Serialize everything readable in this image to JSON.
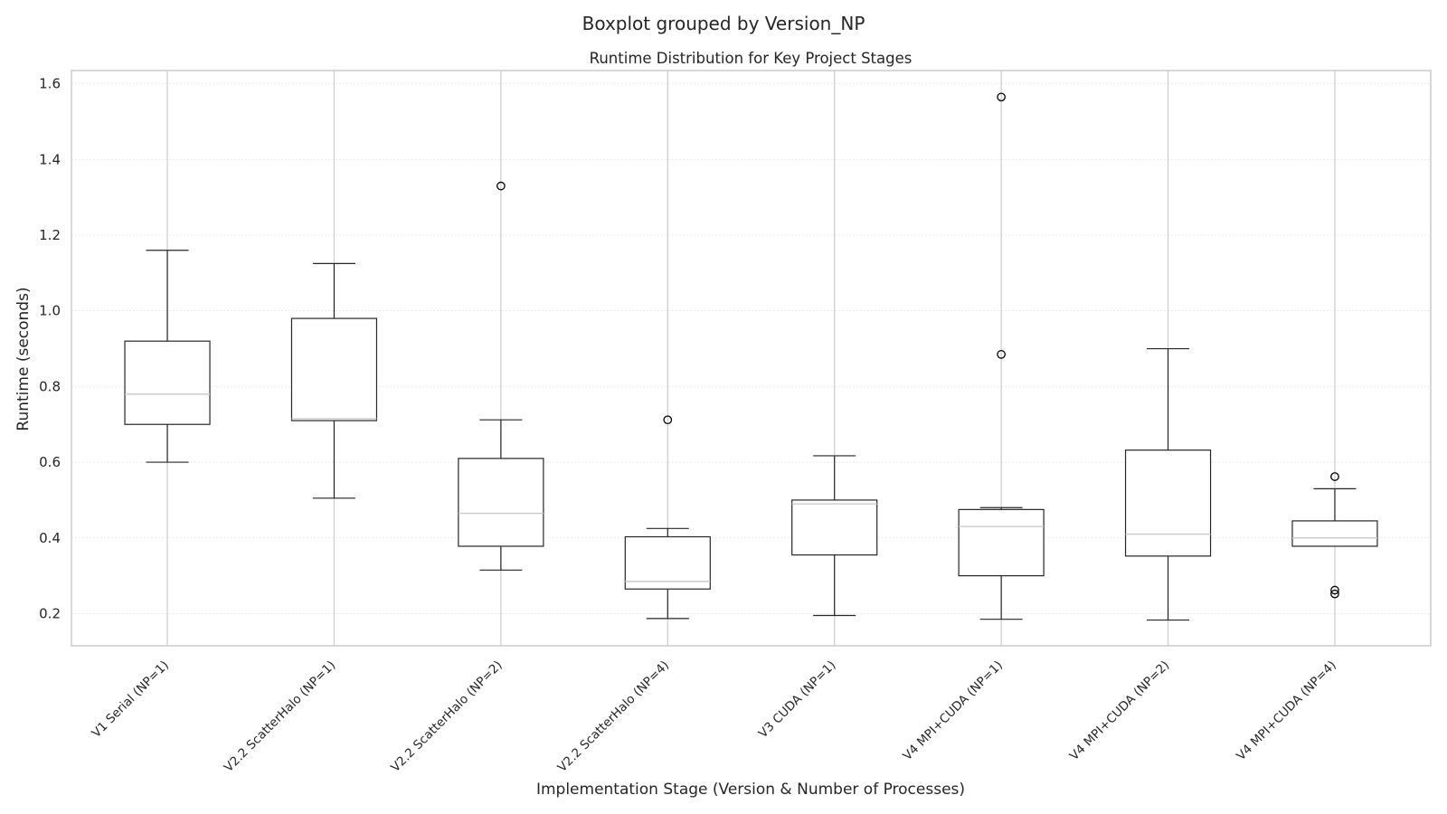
{
  "chart_data": {
    "type": "boxplot",
    "suptitle": "Boxplot grouped by Version_NP",
    "title": "Runtime Distribution for Key Project Stages",
    "xlabel": "Implementation Stage (Version & Number of Processes)",
    "ylabel": "Runtime (seconds)",
    "ylim": [
      0.115,
      1.635
    ],
    "yticks": [
      0.2,
      0.4,
      0.6,
      0.8,
      1.0,
      1.2,
      1.4,
      1.6
    ],
    "ytick_labels": [
      "0.2",
      "0.4",
      "0.6",
      "0.8",
      "1.0",
      "1.2",
      "1.4",
      "1.6"
    ],
    "grid": true,
    "categories": [
      "V1 Serial (NP=1)",
      "V2.2 ScatterHalo (NP=1)",
      "V2.2 ScatterHalo (NP=2)",
      "V2.2 ScatterHalo (NP=4)",
      "V3 CUDA (NP=1)",
      "V4 MPI+CUDA (NP=1)",
      "V4 MPI+CUDA (NP=2)",
      "V4 MPI+CUDA (NP=4)"
    ],
    "boxes": [
      {
        "whislo": 0.6,
        "q1": 0.7,
        "med": 0.78,
        "q3": 0.92,
        "whishi": 1.16,
        "fliers": []
      },
      {
        "whislo": 0.505,
        "q1": 0.71,
        "med": 0.715,
        "q3": 0.98,
        "whishi": 1.125,
        "fliers": []
      },
      {
        "whislo": 0.315,
        "q1": 0.378,
        "med": 0.465,
        "q3": 0.61,
        "whishi": 0.712,
        "fliers": [
          1.33
        ]
      },
      {
        "whislo": 0.187,
        "q1": 0.265,
        "med": 0.285,
        "q3": 0.403,
        "whishi": 0.425,
        "fliers": [
          0.712
        ]
      },
      {
        "whislo": 0.195,
        "q1": 0.355,
        "med": 0.49,
        "q3": 0.5,
        "whishi": 0.617,
        "fliers": []
      },
      {
        "whislo": 0.185,
        "q1": 0.3,
        "med": 0.43,
        "q3": 0.475,
        "whishi": 0.48,
        "fliers": [
          0.885,
          1.565
        ]
      },
      {
        "whislo": 0.183,
        "q1": 0.352,
        "med": 0.41,
        "q3": 0.632,
        "whishi": 0.9,
        "fliers": []
      },
      {
        "whislo": 0.378,
        "q1": 0.378,
        "med": 0.4,
        "q3": 0.445,
        "whishi": 0.53,
        "fliers": [
          0.562,
          0.262,
          0.252
        ]
      }
    ],
    "colors": {
      "box": "#262626",
      "median": "#cccccc",
      "grid": "#e6e6e6",
      "vgrid": "#cccccc",
      "frame": "#cccccc",
      "text": "#262626"
    }
  }
}
